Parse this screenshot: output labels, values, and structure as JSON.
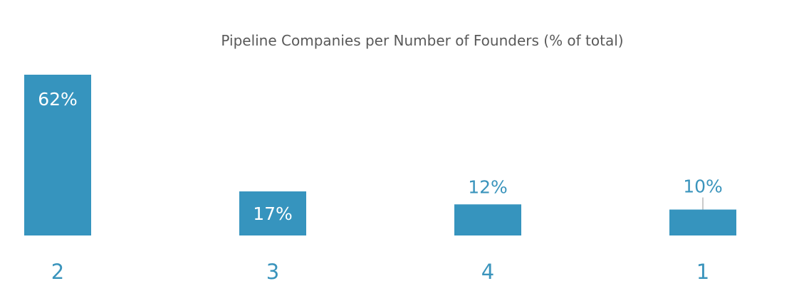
{
  "chart_data": {
    "type": "bar",
    "title": "Pipeline Companies per Number of Founders (% of total)",
    "categories": [
      "2",
      "3",
      "4",
      "1"
    ],
    "values": [
      62,
      17,
      12,
      10
    ],
    "value_labels": [
      "62%",
      "17%",
      "12%",
      "10%"
    ],
    "label_inside": [
      true,
      true,
      false,
      false
    ],
    "leader_line": [
      false,
      false,
      false,
      true
    ],
    "xlabel": "",
    "ylabel": "",
    "ylim": [
      0,
      62
    ],
    "grid": false,
    "legend": "none",
    "bar_color": "#3694be",
    "label_color": "#3a94bc"
  }
}
